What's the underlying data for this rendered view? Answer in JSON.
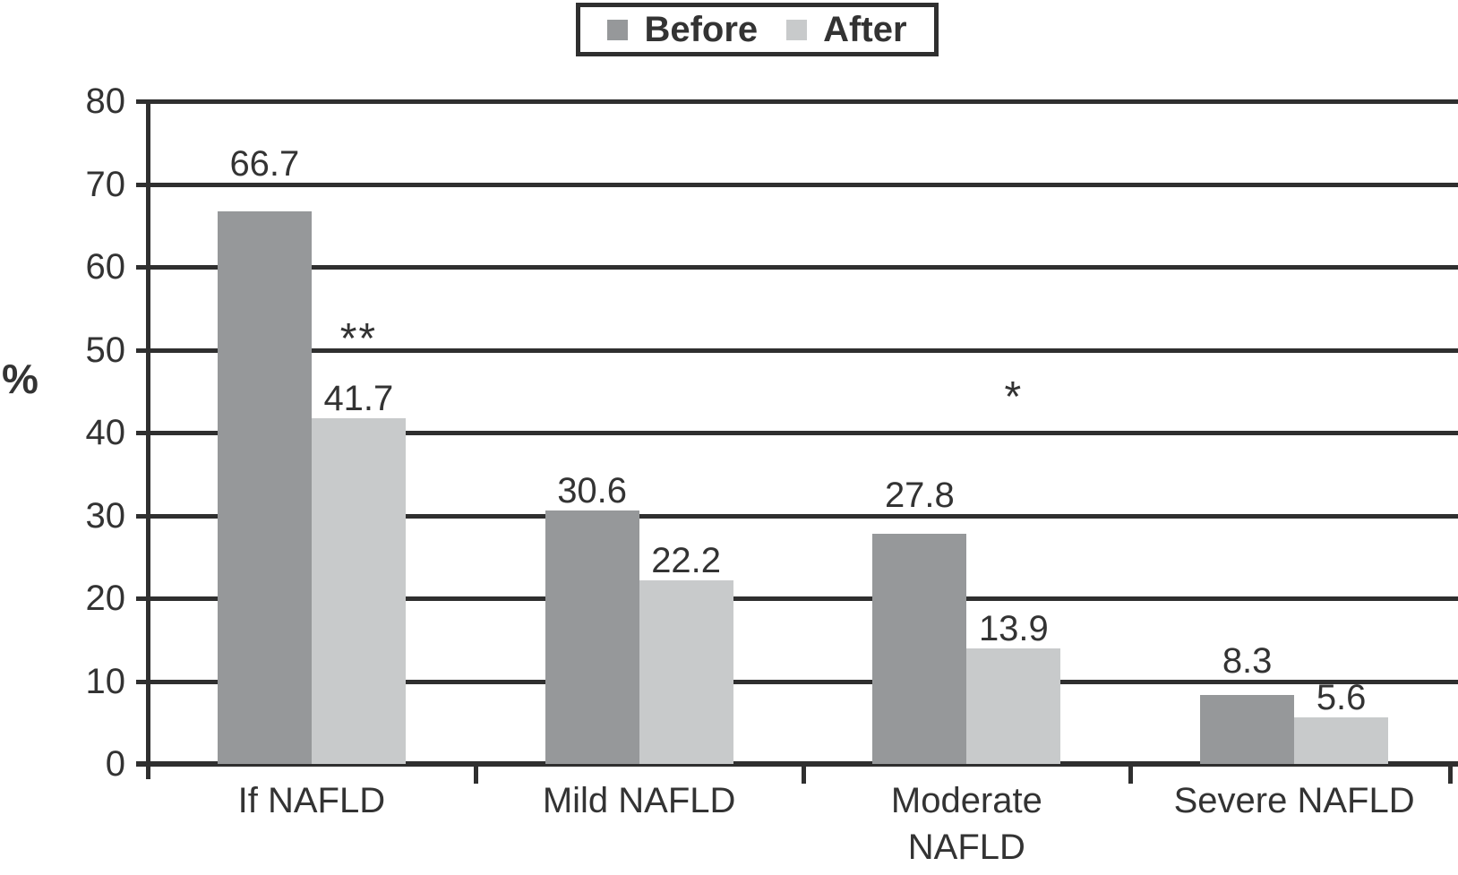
{
  "chart_data": {
    "type": "bar",
    "title": "",
    "categories": [
      "If NAFLD",
      "Mild NAFLD",
      "Moderate NAFLD",
      "Severe NAFLD"
    ],
    "series": [
      {
        "name": "Before",
        "color": "#96989a",
        "values": [
          66.7,
          30.6,
          27.8,
          8.3
        ]
      },
      {
        "name": "After",
        "color": "#c8cacb",
        "values": [
          41.7,
          22.2,
          13.9,
          5.6
        ]
      }
    ],
    "xlabel": "",
    "ylabel": "%",
    "ylim": [
      0,
      80
    ],
    "yticks": [
      0,
      10,
      20,
      30,
      40,
      50,
      60,
      70,
      80
    ],
    "grid": true,
    "legend_position": "top",
    "value_labels": true,
    "annotations": [
      {
        "text": "**",
        "category": "If NAFLD",
        "series": "After",
        "y": 52.3
      },
      {
        "text": "*",
        "category": "Moderate NAFLD",
        "series": "After",
        "y": 45.3
      }
    ],
    "colors": {
      "axis": "#2f2f2f",
      "text": "#333333",
      "background": "#ffffff"
    }
  }
}
